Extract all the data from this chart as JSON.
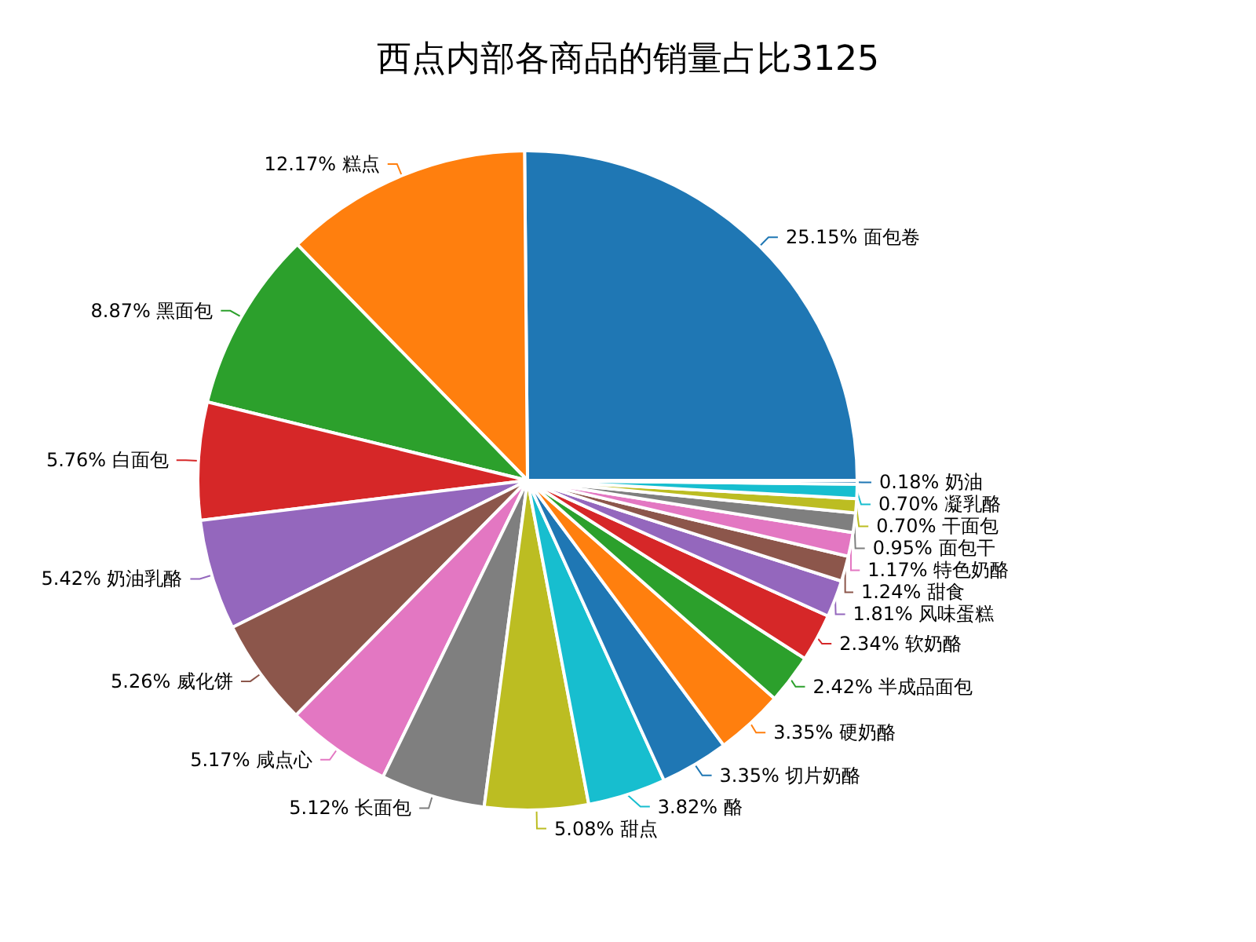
{
  "chart_data": {
    "type": "pie",
    "title": "西点内部各商品的销量占比3125",
    "categories": [
      "面包卷",
      "糕点",
      "黑面包",
      "白面包",
      "奶油乳酪",
      "威化饼",
      "咸点心",
      "长面包",
      "甜点",
      "酪",
      "切片奶酪",
      "硬奶酪",
      "半成品面包",
      "软奶酪",
      "风味蛋糕",
      "甜食",
      "特色奶酪",
      "面包干",
      "干面包",
      "凝乳酪",
      "奶油"
    ],
    "values": [
      25.15,
      12.17,
      8.87,
      5.76,
      5.42,
      5.26,
      5.17,
      5.12,
      5.08,
      3.82,
      3.35,
      3.35,
      2.42,
      2.34,
      1.81,
      1.24,
      1.17,
      0.95,
      0.7,
      0.7,
      0.18
    ],
    "value_labels": [
      "25.15%",
      "12.17%",
      "8.87%",
      "5.76%",
      "5.42%",
      "5.26%",
      "5.17%",
      "5.12%",
      "5.08%",
      "3.82%",
      "3.35%",
      "3.35%",
      "2.42%",
      "2.34%",
      "1.81%",
      "1.24%",
      "1.17%",
      "0.95%",
      "0.70%",
      "0.70%",
      "0.18%"
    ],
    "colors": [
      "#1f77b4",
      "#ff7f0e",
      "#2ca02c",
      "#d62728",
      "#9467bd",
      "#8c564b",
      "#e377c2",
      "#7f7f7f",
      "#bcbd22",
      "#17becf",
      "#1f77b4",
      "#ff7f0e",
      "#2ca02c",
      "#d62728",
      "#9467bd",
      "#8c564b",
      "#e377c2",
      "#7f7f7f",
      "#bcbd22",
      "#17becf",
      "#1f77b4"
    ],
    "legend": false
  }
}
